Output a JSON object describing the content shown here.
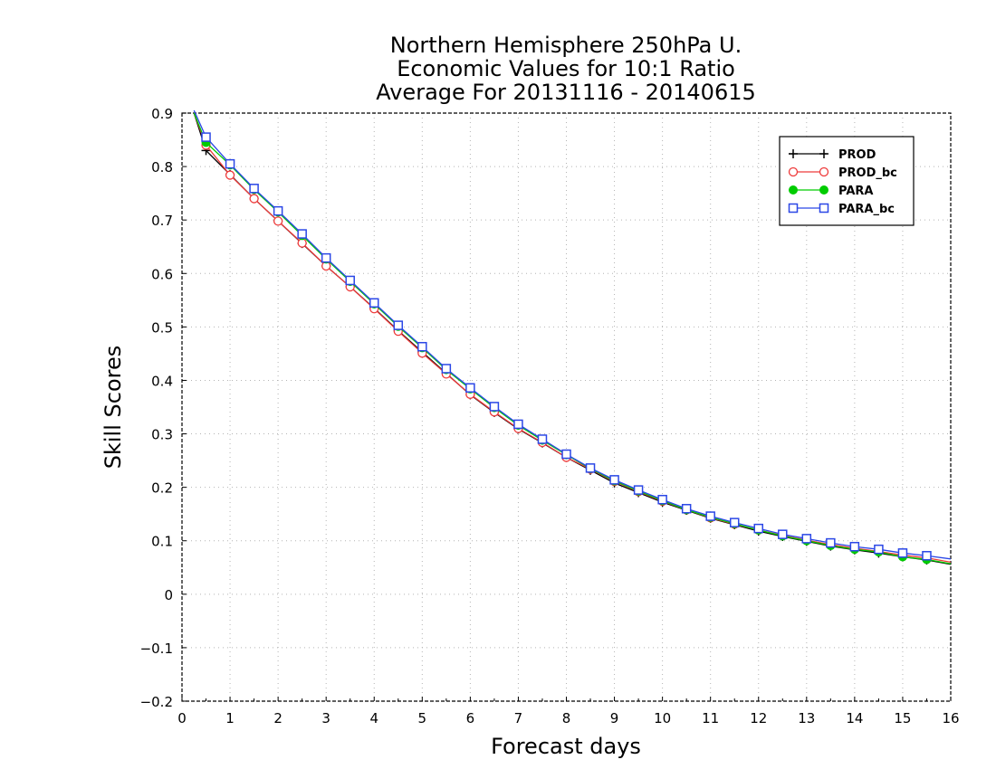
{
  "chart_data": {
    "type": "line",
    "title": [
      "Northern Hemisphere 250hPa U.",
      "Economic Values for 10:1 Ratio",
      "Average For 20131116 - 20140615"
    ],
    "xlabel": "Forecast days",
    "ylabel": "Skill Scores",
    "xlim": [
      0,
      16
    ],
    "ylim": [
      -0.2,
      0.9
    ],
    "xticks": [
      "0",
      "1",
      "2",
      "3",
      "4",
      "5",
      "6",
      "7",
      "8",
      "9",
      "10",
      "11",
      "12",
      "13",
      "14",
      "15",
      "16"
    ],
    "yticks": [
      "−0.2",
      "−0.1",
      "0",
      "0.1",
      "0.2",
      "0.3",
      "0.4",
      "0.5",
      "0.6",
      "0.7",
      "0.8",
      "0.9"
    ],
    "grid": true,
    "legend_position": "top-right",
    "x": [
      0.25,
      0.5,
      1,
      1.5,
      2,
      2.5,
      3,
      3.5,
      4,
      4.5,
      5,
      5.5,
      6,
      6.5,
      7,
      7.5,
      8,
      8.5,
      9,
      9.5,
      10,
      10.5,
      11,
      11.5,
      12,
      12.5,
      13,
      13.5,
      14,
      14.5,
      15,
      15.5,
      16
    ],
    "series": [
      {
        "name": "PROD",
        "color": "#000000",
        "marker": "plus",
        "values": [
          0.9,
          0.83,
          0.785,
          0.74,
          0.698,
          0.656,
          0.614,
          0.575,
          0.535,
          0.493,
          0.453,
          0.413,
          0.373,
          0.34,
          0.309,
          0.283,
          0.256,
          0.232,
          0.208,
          0.19,
          0.172,
          0.157,
          0.142,
          0.13,
          0.118,
          0.108,
          0.099,
          0.09,
          0.083,
          0.077,
          0.07,
          0.064,
          0.056
        ]
      },
      {
        "name": "PROD_bc",
        "color": "#ee3b3b",
        "marker": "circle",
        "values": [
          0.9,
          0.84,
          0.784,
          0.74,
          0.698,
          0.657,
          0.614,
          0.575,
          0.534,
          0.492,
          0.451,
          0.412,
          0.374,
          0.341,
          0.31,
          0.284,
          0.256,
          0.234,
          0.211,
          0.192,
          0.174,
          0.158,
          0.143,
          0.131,
          0.12,
          0.11,
          0.101,
          0.093,
          0.086,
          0.08,
          0.073,
          0.068,
          0.06
        ]
      },
      {
        "name": "PARA",
        "color": "#00cc00",
        "marker": "dot",
        "values": [
          0.9,
          0.845,
          0.803,
          0.757,
          0.715,
          0.671,
          0.627,
          0.585,
          0.543,
          0.501,
          0.461,
          0.42,
          0.384,
          0.349,
          0.316,
          0.288,
          0.261,
          0.235,
          0.212,
          0.193,
          0.175,
          0.158,
          0.144,
          0.132,
          0.12,
          0.109,
          0.1,
          0.091,
          0.084,
          0.079,
          0.07,
          0.065,
          0.057
        ]
      },
      {
        "name": "PARA_bc",
        "color": "#2b47e6",
        "marker": "square",
        "values": [
          0.905,
          0.855,
          0.805,
          0.759,
          0.717,
          0.674,
          0.629,
          0.587,
          0.545,
          0.503,
          0.463,
          0.422,
          0.386,
          0.351,
          0.318,
          0.29,
          0.262,
          0.236,
          0.214,
          0.195,
          0.177,
          0.16,
          0.146,
          0.134,
          0.123,
          0.112,
          0.104,
          0.096,
          0.089,
          0.084,
          0.077,
          0.072,
          0.066
        ]
      }
    ]
  }
}
